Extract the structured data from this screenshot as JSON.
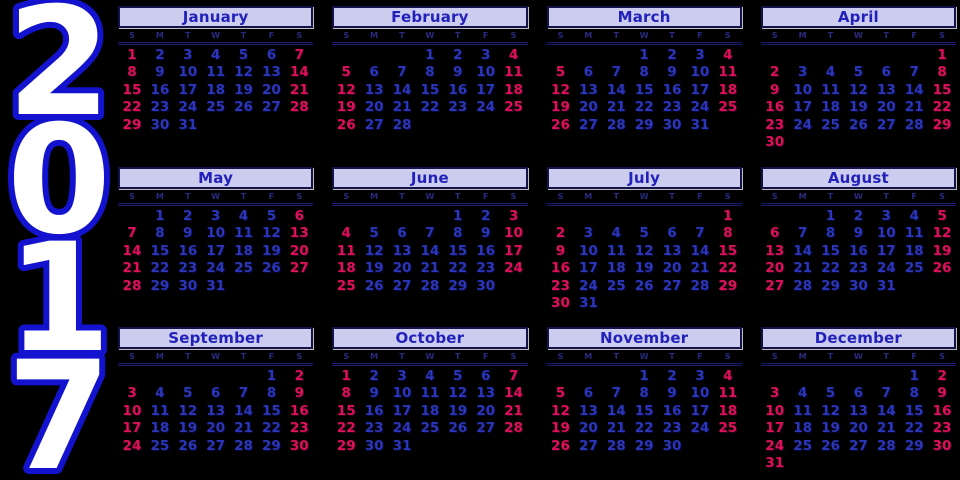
{
  "year": "2017",
  "year_digits": [
    "2",
    "0",
    "1",
    "7"
  ],
  "day_headers": [
    "S",
    "M",
    "T",
    "W",
    "T",
    "F",
    "S"
  ],
  "colors": {
    "background": "#000000",
    "weekend_date": "#dc1157",
    "weekday_date": "#2b36b8",
    "month_title": "#2222bb",
    "month_header_fill": "#ccccee",
    "month_header_border": "#13134a",
    "year_fill": "#ffffff",
    "year_outline": "#1313cf"
  },
  "months": [
    {
      "name": "January",
      "weeks": [
        [
          1,
          2,
          3,
          4,
          5,
          6,
          7
        ],
        [
          8,
          9,
          10,
          11,
          12,
          13,
          14
        ],
        [
          15,
          16,
          17,
          18,
          19,
          20,
          21
        ],
        [
          22,
          23,
          24,
          25,
          26,
          27,
          28
        ],
        [
          29,
          30,
          31,
          null,
          null,
          null,
          null
        ]
      ]
    },
    {
      "name": "February",
      "weeks": [
        [
          null,
          null,
          null,
          1,
          2,
          3,
          4
        ],
        [
          5,
          6,
          7,
          8,
          9,
          10,
          11
        ],
        [
          12,
          13,
          14,
          15,
          16,
          17,
          18
        ],
        [
          19,
          20,
          21,
          22,
          23,
          24,
          25
        ],
        [
          26,
          27,
          28,
          null,
          null,
          null,
          null
        ]
      ]
    },
    {
      "name": "March",
      "weeks": [
        [
          null,
          null,
          null,
          1,
          2,
          3,
          4
        ],
        [
          5,
          6,
          7,
          8,
          9,
          10,
          11
        ],
        [
          12,
          13,
          14,
          15,
          16,
          17,
          18
        ],
        [
          19,
          20,
          21,
          22,
          23,
          24,
          25
        ],
        [
          26,
          27,
          28,
          29,
          30,
          31,
          null
        ]
      ]
    },
    {
      "name": "April",
      "weeks": [
        [
          null,
          null,
          null,
          null,
          null,
          null,
          1
        ],
        [
          2,
          3,
          4,
          5,
          6,
          7,
          8
        ],
        [
          9,
          10,
          11,
          12,
          13,
          14,
          15
        ],
        [
          16,
          17,
          18,
          19,
          20,
          21,
          22
        ],
        [
          23,
          24,
          25,
          26,
          27,
          28,
          29
        ],
        [
          30,
          null,
          null,
          null,
          null,
          null,
          null
        ]
      ]
    },
    {
      "name": "May",
      "weeks": [
        [
          null,
          1,
          2,
          3,
          4,
          5,
          6
        ],
        [
          7,
          8,
          9,
          10,
          11,
          12,
          13
        ],
        [
          14,
          15,
          16,
          17,
          18,
          19,
          20
        ],
        [
          21,
          22,
          23,
          24,
          25,
          26,
          27
        ],
        [
          28,
          29,
          30,
          31,
          null,
          null,
          null
        ]
      ]
    },
    {
      "name": "June",
      "weeks": [
        [
          null,
          null,
          null,
          null,
          1,
          2,
          3
        ],
        [
          4,
          5,
          6,
          7,
          8,
          9,
          10
        ],
        [
          11,
          12,
          13,
          14,
          15,
          16,
          17
        ],
        [
          18,
          19,
          20,
          21,
          22,
          23,
          24
        ],
        [
          25,
          26,
          27,
          28,
          29,
          30,
          null
        ]
      ]
    },
    {
      "name": "July",
      "weeks": [
        [
          null,
          null,
          null,
          null,
          null,
          null,
          1
        ],
        [
          2,
          3,
          4,
          5,
          6,
          7,
          8
        ],
        [
          9,
          10,
          11,
          12,
          13,
          14,
          15
        ],
        [
          16,
          17,
          18,
          19,
          20,
          21,
          22
        ],
        [
          23,
          24,
          25,
          26,
          27,
          28,
          29
        ],
        [
          30,
          31,
          null,
          null,
          null,
          null,
          null
        ]
      ]
    },
    {
      "name": "August",
      "weeks": [
        [
          null,
          null,
          1,
          2,
          3,
          4,
          5
        ],
        [
          6,
          7,
          8,
          9,
          10,
          11,
          12
        ],
        [
          13,
          14,
          15,
          16,
          17,
          18,
          19
        ],
        [
          20,
          21,
          22,
          23,
          24,
          25,
          26
        ],
        [
          27,
          28,
          29,
          30,
          31,
          null,
          null
        ]
      ]
    },
    {
      "name": "September",
      "weeks": [
        [
          null,
          null,
          null,
          null,
          null,
          1,
          2
        ],
        [
          3,
          4,
          5,
          6,
          7,
          8,
          9
        ],
        [
          10,
          11,
          12,
          13,
          14,
          15,
          16
        ],
        [
          17,
          18,
          19,
          20,
          21,
          22,
          23
        ],
        [
          24,
          25,
          26,
          27,
          28,
          29,
          30
        ]
      ]
    },
    {
      "name": "October",
      "weeks": [
        [
          1,
          2,
          3,
          4,
          5,
          6,
          7
        ],
        [
          8,
          9,
          10,
          11,
          12,
          13,
          14
        ],
        [
          15,
          16,
          17,
          18,
          19,
          20,
          21
        ],
        [
          22,
          23,
          24,
          25,
          26,
          27,
          28
        ],
        [
          29,
          30,
          31,
          null,
          null,
          null,
          null
        ]
      ]
    },
    {
      "name": "November",
      "weeks": [
        [
          null,
          null,
          null,
          1,
          2,
          3,
          4
        ],
        [
          5,
          6,
          7,
          8,
          9,
          10,
          11
        ],
        [
          12,
          13,
          14,
          15,
          16,
          17,
          18
        ],
        [
          19,
          20,
          21,
          22,
          23,
          24,
          25
        ],
        [
          26,
          27,
          28,
          29,
          30,
          null,
          null
        ]
      ]
    },
    {
      "name": "December",
      "weeks": [
        [
          null,
          null,
          null,
          null,
          null,
          1,
          2
        ],
        [
          3,
          4,
          5,
          6,
          7,
          8,
          9
        ],
        [
          10,
          11,
          12,
          13,
          14,
          15,
          16
        ],
        [
          17,
          18,
          19,
          20,
          21,
          22,
          23
        ],
        [
          24,
          25,
          26,
          27,
          28,
          29,
          30
        ],
        [
          31,
          null,
          null,
          null,
          null,
          null,
          null
        ]
      ]
    }
  ]
}
